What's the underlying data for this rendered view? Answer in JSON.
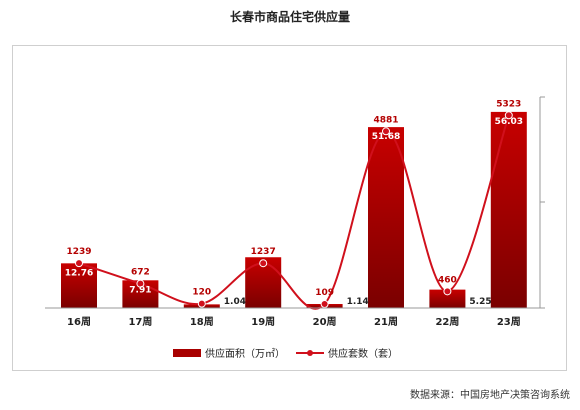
{
  "title": "长春市商品住宅供应量",
  "source": "数据来源：中国房地产决策咨询系统",
  "chart_data": {
    "type": "bar+line",
    "categories": [
      "16周",
      "17周",
      "18周",
      "19周",
      "20周",
      "21周",
      "22周",
      "23周"
    ],
    "series": [
      {
        "name": "供应面积（万㎡）",
        "kind": "bar",
        "axis": "right",
        "values": [
          12.76,
          7.91,
          1.04,
          14.5,
          1.14,
          51.68,
          5.25,
          56.03
        ],
        "labels": [
          "12.76",
          "7.91",
          "1.04",
          "",
          "1.14",
          "51.68",
          "5.25",
          "56.03"
        ]
      },
      {
        "name": "供应套数（套）",
        "kind": "line",
        "axis": "left",
        "values": [
          1239,
          672,
          120,
          1237,
          109,
          4881,
          460,
          5323
        ],
        "labels": [
          "1239",
          "672",
          "120",
          "1237",
          "109",
          "4881",
          "460",
          "5323"
        ]
      }
    ],
    "colors": {
      "bar": "#b40000",
      "line": "#d0101c"
    },
    "legend_position": "bottom"
  }
}
